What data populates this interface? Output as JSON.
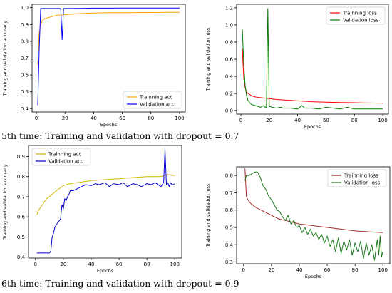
{
  "captions": {
    "top": "5th time: Training and validation with dropout = 0.7",
    "bottom": "6th time: Training and validation with dropout = 0.9"
  },
  "chart_data": [
    {
      "type": "line",
      "xlabel": "Epochs",
      "ylabel": "Training and validation accuracy",
      "xlim": [
        -3,
        104
      ],
      "ylim": [
        0.38,
        1.02
      ],
      "xticks": [
        0,
        20,
        40,
        60,
        80,
        100
      ],
      "yticks": [
        0.4,
        0.5,
        0.6,
        0.7,
        0.8,
        0.9,
        1.0
      ],
      "ytick_labels": [
        "0.4",
        "0.5",
        "0.6",
        "0.7",
        "0.8",
        "0.9",
        "1.0"
      ],
      "grid": false,
      "legend_position": "bottom-right",
      "series": [
        {
          "name": "Trainning acc",
          "color": "#ffa500",
          "x": [
            1,
            2,
            3,
            4,
            5,
            6,
            8,
            10,
            12,
            15,
            20,
            25,
            30,
            40,
            50,
            60,
            70,
            80,
            90,
            100
          ],
          "y": [
            0.66,
            0.85,
            0.9,
            0.92,
            0.93,
            0.935,
            0.94,
            0.945,
            0.95,
            0.955,
            0.958,
            0.962,
            0.965,
            0.968,
            0.97,
            0.97,
            0.971,
            0.971,
            0.972,
            0.972
          ]
        },
        {
          "name": "Vaildation acc",
          "color": "#0000ff",
          "x": [
            1,
            2,
            3,
            4,
            6,
            10,
            15,
            17,
            18,
            19,
            20,
            22,
            30,
            40,
            50,
            60,
            70,
            80,
            90,
            100
          ],
          "y": [
            0.42,
            0.75,
            0.995,
            0.995,
            0.995,
            0.995,
            0.995,
            0.995,
            0.81,
            0.995,
            0.995,
            0.995,
            0.996,
            0.997,
            0.997,
            0.998,
            0.998,
            0.998,
            0.998,
            0.998
          ]
        }
      ]
    },
    {
      "type": "line",
      "xlabel": "Epochs",
      "ylabel": "Training and validation loss",
      "xlim": [
        -3,
        104
      ],
      "ylim": [
        -0.04,
        1.24
      ],
      "xticks": [
        0,
        20,
        40,
        60,
        80,
        100
      ],
      "yticks": [
        0.0,
        0.2,
        0.4,
        0.6,
        0.8,
        1.0,
        1.2
      ],
      "ytick_labels": [
        "0.0",
        "0.2",
        "0.4",
        "0.6",
        "0.8",
        "1.0",
        "1.2"
      ],
      "grid": false,
      "legend_position": "top-right",
      "series": [
        {
          "name": "Trainning loss",
          "color": "#ff0000",
          "x": [
            1,
            2,
            3,
            4,
            5,
            6,
            8,
            10,
            12,
            15,
            20,
            25,
            30,
            35,
            40,
            50,
            60,
            70,
            80,
            90,
            100
          ],
          "y": [
            0.72,
            0.38,
            0.27,
            0.22,
            0.2,
            0.19,
            0.17,
            0.16,
            0.155,
            0.15,
            0.14,
            0.13,
            0.125,
            0.12,
            0.115,
            0.105,
            0.1,
            0.095,
            0.093,
            0.09,
            0.088
          ]
        },
        {
          "name": "Validation loss",
          "color": "#008000",
          "x": [
            1,
            2,
            3,
            4,
            5,
            6,
            7,
            8,
            10,
            12,
            14,
            16,
            18,
            19,
            20,
            22,
            25,
            28,
            30,
            35,
            40,
            43,
            45,
            50,
            55,
            60,
            70,
            75,
            80,
            90,
            100
          ],
          "y": [
            0.95,
            0.55,
            0.3,
            0.18,
            0.12,
            0.1,
            0.08,
            0.07,
            0.06,
            0.05,
            0.04,
            0.06,
            0.03,
            1.19,
            0.05,
            0.04,
            0.03,
            0.04,
            0.03,
            0.03,
            0.02,
            0.06,
            0.03,
            0.03,
            0.02,
            0.04,
            0.02,
            0.04,
            0.02,
            0.02,
            0.02
          ]
        }
      ]
    },
    {
      "type": "line",
      "xlabel": "Epochs",
      "ylabel": "Training and validation accuracy",
      "xlim": [
        -5,
        105
      ],
      "ylim": [
        0.395,
        0.955
      ],
      "xticks": [
        0,
        20,
        40,
        60,
        80,
        100
      ],
      "yticks": [
        0.4,
        0.5,
        0.6,
        0.7,
        0.8,
        0.9
      ],
      "ytick_labels": [
        "0.4",
        "0.5",
        "0.6",
        "0.7",
        "0.8",
        "0.9"
      ],
      "grid": false,
      "legend_position": "top-left",
      "series": [
        {
          "name": "Trainning acc",
          "color": "#cdb600",
          "x": [
            1,
            2,
            4,
            6,
            8,
            10,
            15,
            20,
            25,
            30,
            35,
            40,
            50,
            60,
            70,
            80,
            90,
            95,
            100
          ],
          "y": [
            0.61,
            0.63,
            0.65,
            0.67,
            0.69,
            0.7,
            0.73,
            0.755,
            0.765,
            0.77,
            0.775,
            0.78,
            0.785,
            0.79,
            0.795,
            0.8,
            0.8,
            0.81,
            0.805
          ]
        },
        {
          "name": "Vaildation acc",
          "color": "#0000cd",
          "x": [
            1,
            5,
            9,
            10,
            11,
            12,
            13,
            14,
            15,
            16,
            18,
            19,
            20,
            21,
            22,
            23,
            24,
            25,
            27,
            30,
            33,
            36,
            40,
            43,
            46,
            50,
            53,
            56,
            60,
            63,
            66,
            70,
            73,
            76,
            80,
            83,
            86,
            90,
            92,
            93,
            94,
            95,
            96,
            97,
            98,
            99,
            100
          ],
          "y": [
            0.42,
            0.42,
            0.42,
            0.42,
            0.43,
            0.5,
            0.52,
            0.55,
            0.56,
            0.57,
            0.59,
            0.66,
            0.64,
            0.69,
            0.68,
            0.7,
            0.71,
            0.73,
            0.73,
            0.74,
            0.75,
            0.76,
            0.755,
            0.765,
            0.76,
            0.77,
            0.75,
            0.765,
            0.76,
            0.77,
            0.75,
            0.765,
            0.76,
            0.75,
            0.765,
            0.76,
            0.77,
            0.75,
            0.77,
            0.94,
            0.76,
            0.77,
            0.75,
            0.77,
            0.76,
            0.76,
            0.765
          ]
        }
      ]
    },
    {
      "type": "line",
      "xlabel": "Epochs",
      "ylabel": "Training and validation loss",
      "xlim": [
        -5,
        105
      ],
      "ylim": [
        0.29,
        0.85
      ],
      "xticks": [
        0,
        20,
        40,
        60,
        80,
        100
      ],
      "yticks": [
        0.3,
        0.4,
        0.5,
        0.6,
        0.7,
        0.8
      ],
      "ytick_labels": [
        "0.3",
        "0.4",
        "0.5",
        "0.6",
        "0.7",
        "0.8"
      ],
      "grid": false,
      "legend_position": "top-right",
      "series": [
        {
          "name": "Trainning loss",
          "color": "#a52a2a",
          "x": [
            1,
            2,
            3,
            4,
            5,
            8,
            10,
            15,
            20,
            25,
            30,
            35,
            40,
            50,
            60,
            70,
            80,
            90,
            100
          ],
          "y": [
            0.84,
            0.68,
            0.66,
            0.65,
            0.64,
            0.62,
            0.61,
            0.59,
            0.57,
            0.55,
            0.54,
            0.53,
            0.52,
            0.51,
            0.5,
            0.49,
            0.48,
            0.475,
            0.47
          ]
        },
        {
          "name": "Validation loss",
          "color": "#1a7a1a",
          "x": [
            1,
            2,
            4,
            6,
            8,
            10,
            12,
            14,
            16,
            18,
            20,
            22,
            24,
            26,
            28,
            30,
            32,
            34,
            36,
            38,
            40,
            42,
            44,
            46,
            48,
            50,
            52,
            54,
            56,
            58,
            60,
            62,
            64,
            66,
            68,
            70,
            72,
            74,
            76,
            78,
            80,
            82,
            84,
            86,
            88,
            90,
            92,
            94,
            96,
            97,
            98,
            99,
            100
          ],
          "y": [
            0.77,
            0.8,
            0.8,
            0.81,
            0.82,
            0.82,
            0.79,
            0.74,
            0.72,
            0.68,
            0.66,
            0.63,
            0.6,
            0.59,
            0.56,
            0.54,
            0.57,
            0.52,
            0.54,
            0.5,
            0.51,
            0.47,
            0.5,
            0.46,
            0.49,
            0.45,
            0.47,
            0.43,
            0.46,
            0.41,
            0.45,
            0.39,
            0.43,
            0.36,
            0.44,
            0.35,
            0.42,
            0.37,
            0.43,
            0.34,
            0.41,
            0.36,
            0.42,
            0.32,
            0.41,
            0.34,
            0.4,
            0.31,
            0.43,
            0.34,
            0.45,
            0.33,
            0.36
          ]
        }
      ]
    }
  ]
}
